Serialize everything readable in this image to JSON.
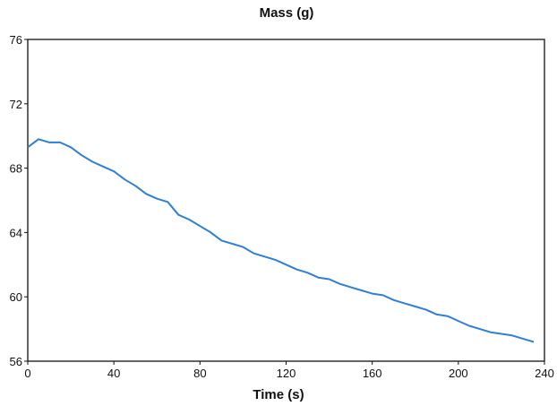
{
  "chart_data": {
    "type": "line",
    "title": "Mass (g)",
    "xlabel": "Time (s)",
    "ylabel": "",
    "xlim": [
      0,
      240
    ],
    "ylim": [
      56,
      76
    ],
    "xticks": [
      0,
      40,
      80,
      120,
      160,
      200,
      240
    ],
    "yticks": [
      56,
      60,
      64,
      68,
      72,
      76
    ],
    "grid": false,
    "series": [
      {
        "color": "#2f7fd6",
        "x": [
          0,
          5,
          10,
          15,
          20,
          25,
          30,
          35,
          40,
          45,
          50,
          55,
          60,
          65,
          70,
          75,
          80,
          85,
          90,
          95,
          100,
          105,
          110,
          115,
          120,
          125,
          130,
          135,
          140,
          145,
          150,
          155,
          160,
          165,
          170,
          175,
          180,
          185,
          190,
          195,
          200,
          205,
          210,
          215,
          220,
          225,
          230,
          235
        ],
        "y": [
          69.3,
          69.8,
          69.6,
          69.6,
          69.3,
          68.8,
          68.4,
          68.1,
          67.8,
          67.3,
          66.9,
          66.4,
          66.1,
          65.9,
          65.1,
          64.8,
          64.4,
          64.0,
          63.5,
          63.3,
          63.1,
          62.7,
          62.5,
          62.3,
          62.0,
          61.7,
          61.5,
          61.2,
          61.1,
          60.8,
          60.6,
          60.4,
          60.2,
          60.1,
          59.8,
          59.6,
          59.4,
          59.2,
          58.9,
          58.8,
          58.5,
          58.2,
          58.0,
          57.8,
          57.7,
          57.6,
          57.4,
          57.2
        ]
      }
    ]
  }
}
